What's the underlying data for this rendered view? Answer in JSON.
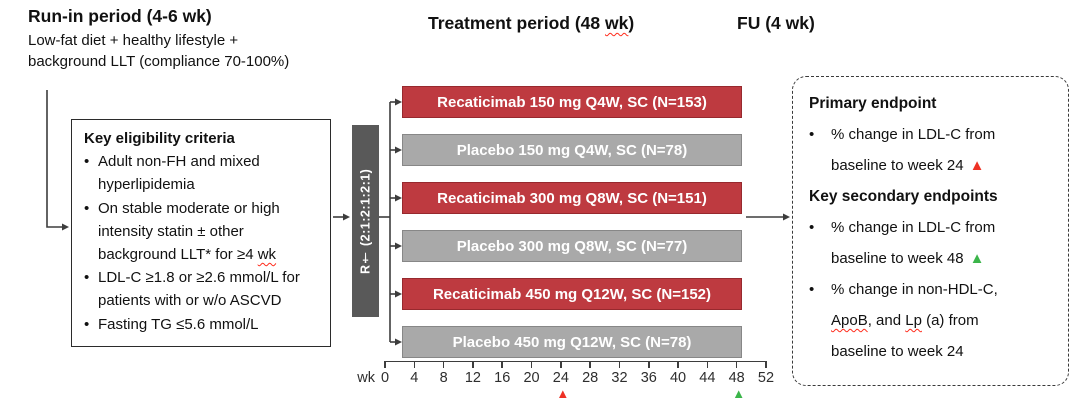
{
  "colors": {
    "drug": "#BE3A40",
    "placebo": "#A9A9A9",
    "rand": "#595959",
    "line": "#3D3D3D",
    "marker_red": "#EE3124",
    "marker_green": "#3BB54A"
  },
  "icons": {
    "triangle": "▲",
    "bullet": "•"
  },
  "headers": {
    "run_in_title": "Run-in period (4-6 wk)",
    "run_in_sub_line1": "Low-fat diet + healthy lifestyle +",
    "run_in_sub_line2": "background LLT (compliance 70-100%)",
    "treatment_title": "Treatment period (48 wk)",
    "fu_title": "FU (4 wk)"
  },
  "eligibility": {
    "title": "Key eligibility criteria",
    "bullets": [
      "Adult non-FH and mixed hyperlipidemia",
      "On stable moderate or high intensity statin ± other background LLT* for ≥4 wk",
      "LDL-C ≥1.8 or ≥2.6 mmol/L for patients with or w/o ASCVD",
      "Fasting TG ≤5.6 mmol/L"
    ]
  },
  "randomization": {
    "label": "R† (2:1:2:1:2:1)"
  },
  "arms": [
    {
      "label": "Recaticimab 150 mg Q4W, SC (N=153)",
      "type": "drug"
    },
    {
      "label": "Placebo 150 mg Q4W, SC (N=78)",
      "type": "placebo"
    },
    {
      "label": "Recaticimab 300 mg Q8W, SC (N=151)",
      "type": "drug"
    },
    {
      "label": "Placebo 300 mg Q8W, SC (N=77)",
      "type": "placebo"
    },
    {
      "label": "Recaticimab 450 mg Q12W, SC (N=152)",
      "type": "drug"
    },
    {
      "label": "Placebo 450 mg Q12W, SC (N=78)",
      "type": "placebo"
    }
  ],
  "axis": {
    "unit_label": "wk",
    "ticks": [
      0,
      4,
      8,
      12,
      16,
      20,
      24,
      28,
      32,
      36,
      40,
      44,
      48,
      52
    ],
    "markers": [
      {
        "week": 24,
        "color": "red"
      },
      {
        "week": 48,
        "color": "green"
      }
    ]
  },
  "endpoints": {
    "primary_title": "Primary endpoint",
    "secondary_title": "Key secondary endpoints",
    "items": [
      {
        "lines": [
          "% change in LDL-C from",
          "baseline to week 24"
        ],
        "marker": "red"
      },
      {
        "lines": [
          "% change in LDL-C from",
          "baseline to week 48"
        ],
        "marker": "green"
      },
      {
        "lines": [
          "% change in non-HDL-C,",
          "ApoB, and Lp (a) from",
          "baseline to week 24"
        ],
        "marker": null
      }
    ]
  },
  "squiggle_words": [
    "wk",
    "ApoB",
    "Lp"
  ]
}
